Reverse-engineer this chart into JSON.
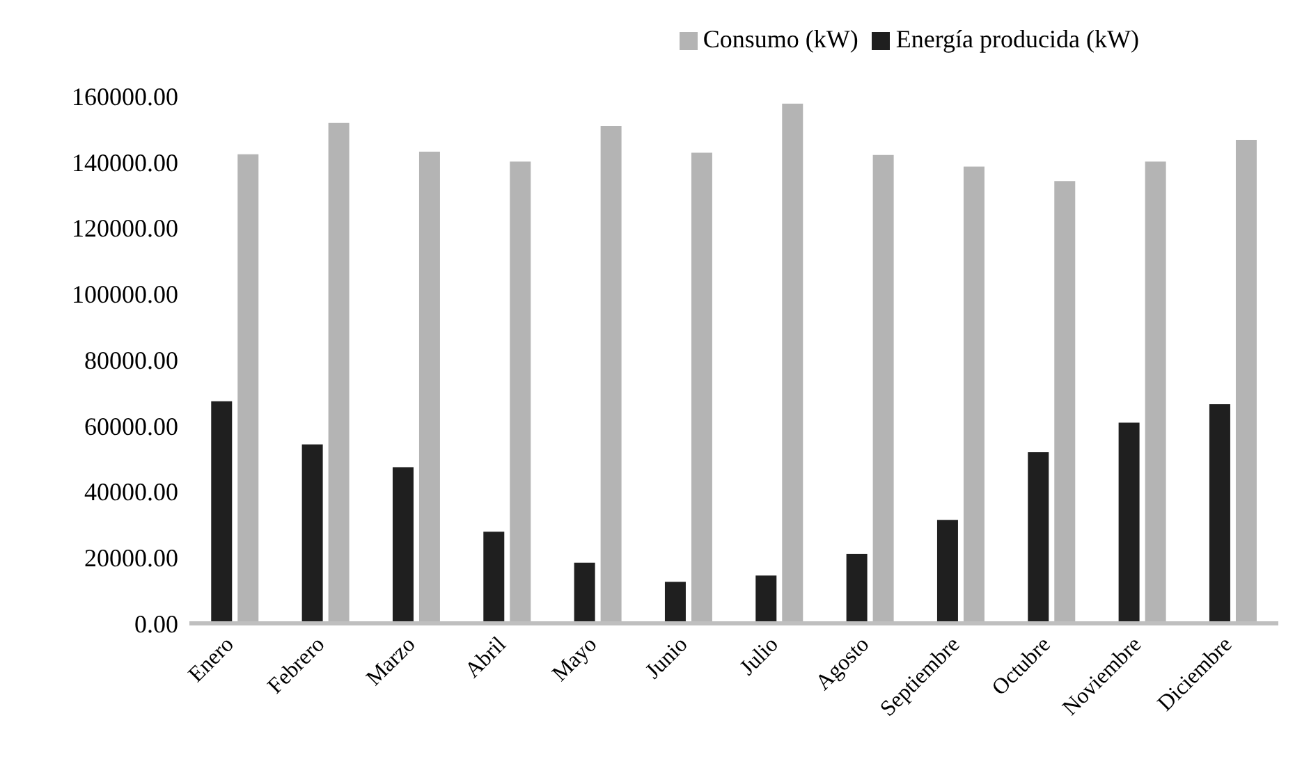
{
  "chart_data": {
    "type": "bar",
    "categories": [
      "Enero",
      "Febrero",
      "Marzo",
      "Abril",
      "Mayo",
      "Junio",
      "Julio",
      "Agosto",
      "Septiembre",
      "Octubre",
      "Noviembre",
      "Diciembre"
    ],
    "series": [
      {
        "name": "Energía producida (kW)",
        "color": "#1f1f1f",
        "values": [
          67400,
          54300,
          47400,
          27800,
          18400,
          12600,
          14500,
          21100,
          31400,
          51900,
          60900,
          66500
        ]
      },
      {
        "name": "Consumo (kW)",
        "color": "#b4b4b4",
        "values": [
          142300,
          151800,
          143100,
          140100,
          150900,
          142800,
          157700,
          142100,
          138600,
          134200,
          140100,
          146700
        ]
      }
    ],
    "ylim": [
      0,
      160000
    ],
    "yticks": [
      {
        "value": 0,
        "label": "0.00"
      },
      {
        "value": 20000,
        "label": "20000.00"
      },
      {
        "value": 40000,
        "label": "40000.00"
      },
      {
        "value": 60000,
        "label": "60000.00"
      },
      {
        "value": 80000,
        "label": "80000.00"
      },
      {
        "value": 100000,
        "label": "100000.00"
      },
      {
        "value": 120000,
        "label": "120000.00"
      },
      {
        "value": 140000,
        "label": "140000.00"
      },
      {
        "value": 160000,
        "label": "160000.00"
      }
    ],
    "grid": false,
    "legend": "top right"
  }
}
